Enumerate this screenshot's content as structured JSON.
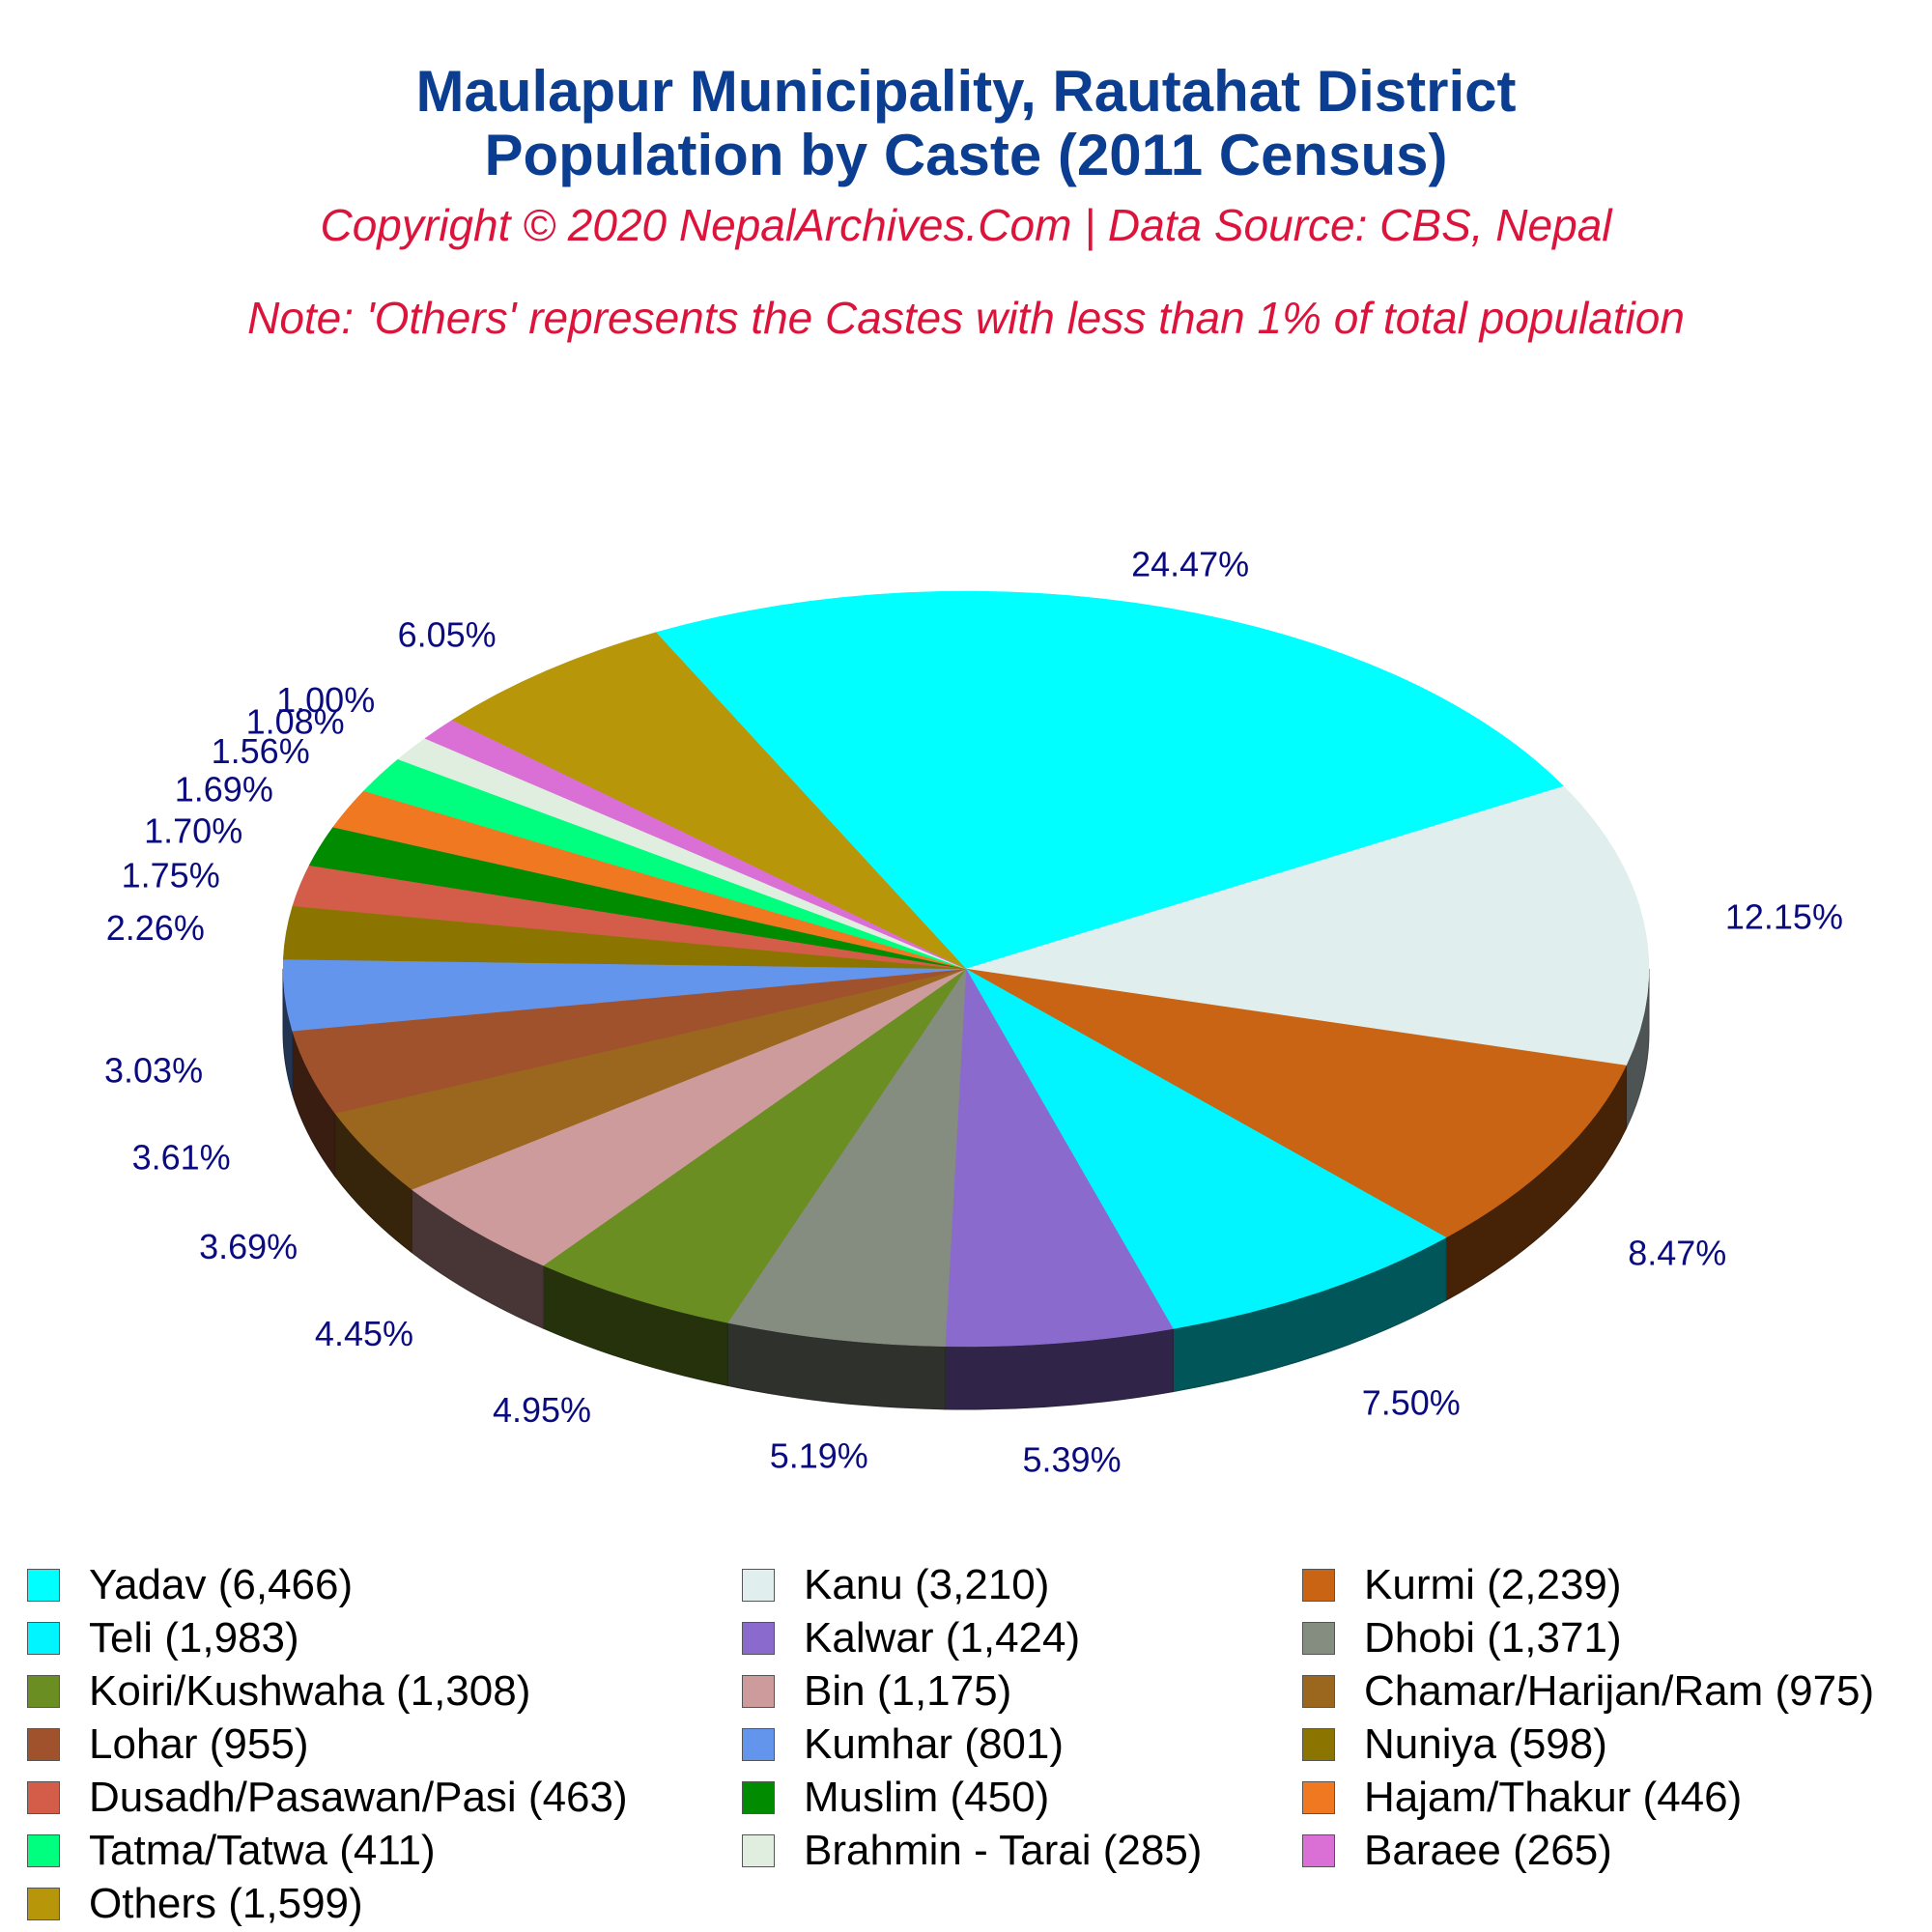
{
  "title_line1": "Maulapur Municipality, Rautahat District",
  "title_line2": "Population by Caste (2011 Census)",
  "copyright": "Copyright © 2020 NepalArchives.Com | Data Source: CBS, Nepal",
  "note": "Note: 'Others' represents the Castes with less than 1% of total population",
  "chart_data": {
    "type": "pie",
    "style": "3d",
    "legend_position": "bottom",
    "slices": [
      {
        "label": "Yadav (6,466)",
        "category": "Yadav",
        "value": 6466,
        "percent_label": "24.47%",
        "color": "#00FFFF"
      },
      {
        "label": "Kanu (3,210)",
        "category": "Kanu",
        "value": 3210,
        "percent_label": "12.15%",
        "color": "#E0EEEE"
      },
      {
        "label": "Kurmi (2,239)",
        "category": "Kurmi",
        "value": 2239,
        "percent_label": "8.47%",
        "color": "#C86414"
      },
      {
        "label": "Teli (1,983)",
        "category": "Teli",
        "value": 1983,
        "percent_label": "7.50%",
        "color": "#00F5FF"
      },
      {
        "label": "Kalwar (1,424)",
        "category": "Kalwar",
        "value": 1424,
        "percent_label": "5.39%",
        "color": "#8A6ACD"
      },
      {
        "label": "Dhobi (1,371)",
        "category": "Dhobi",
        "value": 1371,
        "percent_label": "5.19%",
        "color": "#858C80"
      },
      {
        "label": "Koiri/Kushwaha (1,308)",
        "category": "Koiri/Kushwaha",
        "value": 1308,
        "percent_label": "4.95%",
        "color": "#6B8E23"
      },
      {
        "label": "Bin (1,175)",
        "category": "Bin",
        "value": 1175,
        "percent_label": "4.45%",
        "color": "#CD9B9B"
      },
      {
        "label": "Chamar/Harijan/Ram (975)",
        "category": "Chamar/Harijan/Ram",
        "value": 975,
        "percent_label": "3.69%",
        "color": "#9B661E"
      },
      {
        "label": "Lohar (955)",
        "category": "Lohar",
        "value": 955,
        "percent_label": "3.61%",
        "color": "#A0522D"
      },
      {
        "label": "Kumhar (801)",
        "category": "Kumhar",
        "value": 801,
        "percent_label": "3.03%",
        "color": "#6495ED"
      },
      {
        "label": "Nuniya (598)",
        "category": "Nuniya",
        "value": 598,
        "percent_label": "2.26%",
        "color": "#8B7500"
      },
      {
        "label": "Dusadh/Pasawan/Pasi (463)",
        "category": "Dusadh/Pasawan/Pasi",
        "value": 463,
        "percent_label": "1.75%",
        "color": "#D45D4A"
      },
      {
        "label": "Muslim (450)",
        "category": "Muslim",
        "value": 450,
        "percent_label": "1.70%",
        "color": "#008B00"
      },
      {
        "label": "Hajam/Thakur (446)",
        "category": "Hajam/Thakur",
        "value": 446,
        "percent_label": "1.69%",
        "color": "#F07820"
      },
      {
        "label": "Tatma/Tatwa (411)",
        "category": "Tatma/Tatwa",
        "value": 411,
        "percent_label": "1.56%",
        "color": "#00FF7F"
      },
      {
        "label": "Brahmin - Tarai (285)",
        "category": "Brahmin - Tarai",
        "value": 285,
        "percent_label": "1.08%",
        "color": "#E0EEE0"
      },
      {
        "label": "Baraee (265)",
        "category": "Baraee",
        "value": 265,
        "percent_label": "1.00%",
        "color": "#DA70D6"
      },
      {
        "label": "Others (1,599)",
        "category": "Others",
        "value": 1599,
        "percent_label": "6.05%",
        "color": "#B8960A"
      }
    ]
  }
}
